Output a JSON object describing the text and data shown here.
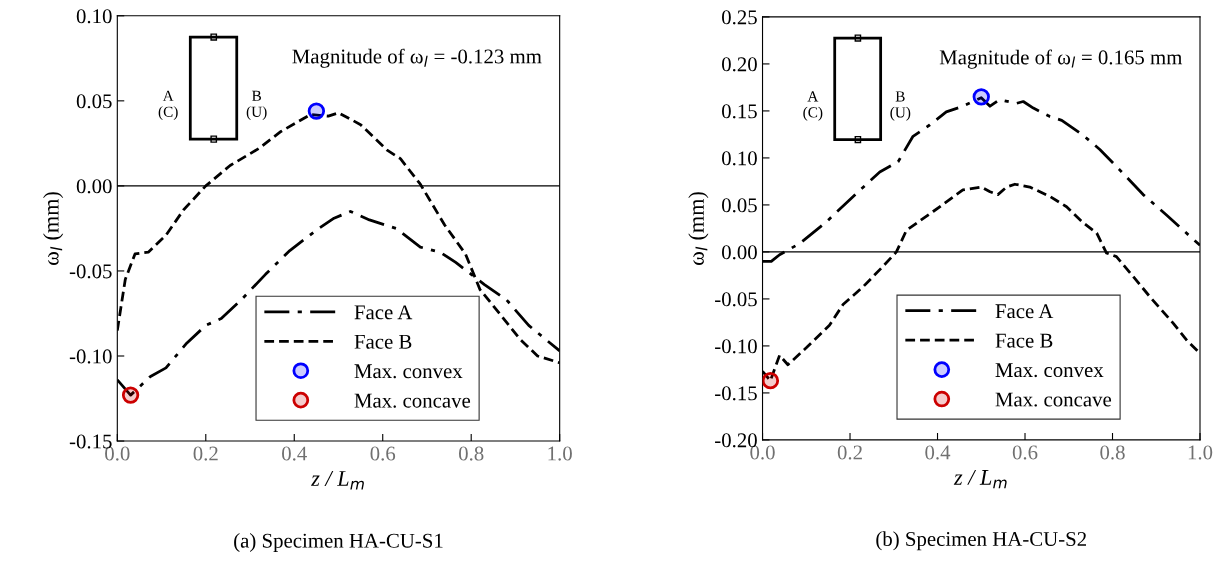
{
  "chart_data": [
    {
      "type": "line",
      "title": "(a) Specimen HA-CU-S1",
      "xlabel": "z / L$_{m}$",
      "ylabel": "ω$_{l}$ (mm)",
      "annotations": [
        "Magnitude of ω$_{l}$ = -0.123 mm",
        "A\n(C)",
        "B\n(U)"
      ],
      "xlim": [
        0,
        1
      ],
      "xticks": [
        {
          "value": 0,
          "label": "0.0"
        },
        {
          "value": 0.2,
          "label": "0.2"
        },
        {
          "value": 0.4,
          "label": "0.4"
        },
        {
          "value": 0.6,
          "label": "0.6"
        },
        {
          "value": 0.8,
          "label": "0.8"
        },
        {
          "value": 1,
          "label": "1.0"
        }
      ],
      "ylim": [
        -0.15,
        0.1
      ],
      "yticks": [
        {
          "value": -0.15,
          "label": "-0.15"
        },
        {
          "value": -0.1,
          "label": "-0.10"
        },
        {
          "value": -0.05,
          "label": "-0.05"
        },
        {
          "value": 0,
          "label": "0.00"
        },
        {
          "value": 0.05,
          "label": "0.05"
        },
        {
          "value": 0.1,
          "label": "0.10"
        }
      ],
      "ref_lines": [
        {
          "axis": "y",
          "value": 0,
          "color": "#000000",
          "line_style": "solid"
        }
      ],
      "legend": "bottom right",
      "grid": false,
      "series": [
        {
          "name": "Face A",
          "color": "#000000",
          "line_style": "dashdot",
          "x": [
            0,
            0.03,
            0.075,
            0.11,
            0.155,
            0.2,
            0.235,
            0.28,
            0.335,
            0.39,
            0.45,
            0.49,
            0.527,
            0.57,
            0.63,
            0.685,
            0.73,
            0.765,
            0.8,
            0.83,
            0.88,
            0.93,
            1.0
          ],
          "values": [
            -0.114,
            -0.123,
            -0.112,
            -0.107,
            -0.093,
            -0.082,
            -0.078,
            -0.067,
            -0.052,
            -0.038,
            -0.026,
            -0.019,
            -0.015,
            -0.02,
            -0.025,
            -0.036,
            -0.039,
            -0.045,
            -0.052,
            -0.058,
            -0.067,
            -0.082,
            -0.097
          ]
        },
        {
          "name": "Face B",
          "color": "#000000",
          "line_style": "dashed",
          "x": [
            0,
            0.018,
            0.04,
            0.07,
            0.11,
            0.15,
            0.2,
            0.255,
            0.32,
            0.37,
            0.437,
            0.477,
            0.5,
            0.55,
            0.61,
            0.64,
            0.685,
            0.74,
            0.787,
            0.82,
            0.867,
            0.91,
            0.95,
            1.0
          ],
          "values": [
            -0.085,
            -0.055,
            -0.04,
            -0.039,
            -0.029,
            -0.014,
            0.0,
            0.012,
            0.022,
            0.032,
            0.042,
            0.041,
            0.043,
            0.036,
            0.021,
            0.016,
            0.001,
            -0.023,
            -0.04,
            -0.061,
            -0.076,
            -0.09,
            -0.1,
            -0.104
          ]
        },
        {
          "name": "Max. convex",
          "type": "scatter",
          "color": "#0000ff",
          "marker": "circle",
          "x": [
            0.45
          ],
          "values": [
            0.044
          ]
        },
        {
          "name": "Max. concave",
          "type": "scatter",
          "color": "#cc0000",
          "marker": "circle",
          "x": [
            0.03
          ],
          "values": [
            -0.123
          ]
        }
      ]
    },
    {
      "type": "line",
      "title": "(b) Specimen HA-CU-S2",
      "xlabel": "z / L$_{m}$",
      "ylabel": "ω$_{l}$ (mm)",
      "annotations": [
        "Magnitude of ω$_{l}$ = 0.165 mm",
        "A\n(C)",
        "B\n(U)"
      ],
      "xlim": [
        0,
        1
      ],
      "xticks": [
        {
          "value": 0,
          "label": "0.0"
        },
        {
          "value": 0.2,
          "label": "0.2"
        },
        {
          "value": 0.4,
          "label": "0.4"
        },
        {
          "value": 0.6,
          "label": "0.6"
        },
        {
          "value": 0.8,
          "label": "0.8"
        },
        {
          "value": 1,
          "label": "1.0"
        }
      ],
      "ylim": [
        -0.2,
        0.25
      ],
      "yticks": [
        {
          "value": -0.2,
          "label": "-0.20"
        },
        {
          "value": -0.15,
          "label": "-0.15"
        },
        {
          "value": -0.1,
          "label": "-0.10"
        },
        {
          "value": -0.05,
          "label": "-0.05"
        },
        {
          "value": 0,
          "label": "0.00"
        },
        {
          "value": 0.05,
          "label": "0.05"
        },
        {
          "value": 0.1,
          "label": "0.10"
        },
        {
          "value": 0.15,
          "label": "0.15"
        },
        {
          "value": 0.2,
          "label": "0.20"
        },
        {
          "value": 0.25,
          "label": "0.25"
        }
      ],
      "ref_lines": [
        {
          "axis": "y",
          "value": 0,
          "color": "#000000",
          "line_style": "solid"
        }
      ],
      "legend": "bottom right",
      "grid": false,
      "series": [
        {
          "name": "Face A",
          "color": "#000000",
          "line_style": "dashdot",
          "x": [
            0,
            0.02,
            0.039,
            0.085,
            0.146,
            0.214,
            0.268,
            0.31,
            0.344,
            0.382,
            0.42,
            0.458,
            0.5,
            0.52,
            0.542,
            0.58,
            0.596,
            0.619,
            0.657,
            0.684,
            0.733,
            0.771,
            0.817,
            0.87,
            0.924,
            1.0
          ],
          "values": [
            -0.01,
            -0.01,
            -0.003,
            0.009,
            0.032,
            0.062,
            0.085,
            0.096,
            0.123,
            0.135,
            0.149,
            0.155,
            0.164,
            0.155,
            0.162,
            0.158,
            0.16,
            0.153,
            0.144,
            0.14,
            0.124,
            0.109,
            0.087,
            0.061,
            0.039,
            0.007
          ]
        },
        {
          "name": "Face B",
          "color": "#000000",
          "line_style": "dashed",
          "x": [
            0,
            0.018,
            0.039,
            0.058,
            0.1,
            0.153,
            0.184,
            0.23,
            0.272,
            0.306,
            0.329,
            0.39,
            0.458,
            0.5,
            0.52,
            0.538,
            0.558,
            0.577,
            0.611,
            0.657,
            0.695,
            0.733,
            0.764,
            0.786,
            0.809,
            0.847,
            0.886,
            0.939,
            0.97,
            1.0
          ],
          "values": [
            -0.127,
            -0.137,
            -0.11,
            -0.12,
            -0.102,
            -0.078,
            -0.056,
            -0.037,
            -0.017,
            0.0,
            0.023,
            0.043,
            0.066,
            0.069,
            0.064,
            0.061,
            0.069,
            0.072,
            0.069,
            0.059,
            0.048,
            0.031,
            0.02,
            -0.001,
            -0.005,
            -0.026,
            -0.048,
            -0.076,
            -0.094,
            -0.108
          ]
        },
        {
          "name": "Max. convex",
          "type": "scatter",
          "color": "#0000ff",
          "marker": "circle",
          "x": [
            0.5
          ],
          "values": [
            0.165
          ]
        },
        {
          "name": "Max. concave",
          "type": "scatter",
          "color": "#cc0000",
          "marker": "circle",
          "x": [
            0.018
          ],
          "values": [
            -0.137
          ]
        }
      ]
    }
  ]
}
